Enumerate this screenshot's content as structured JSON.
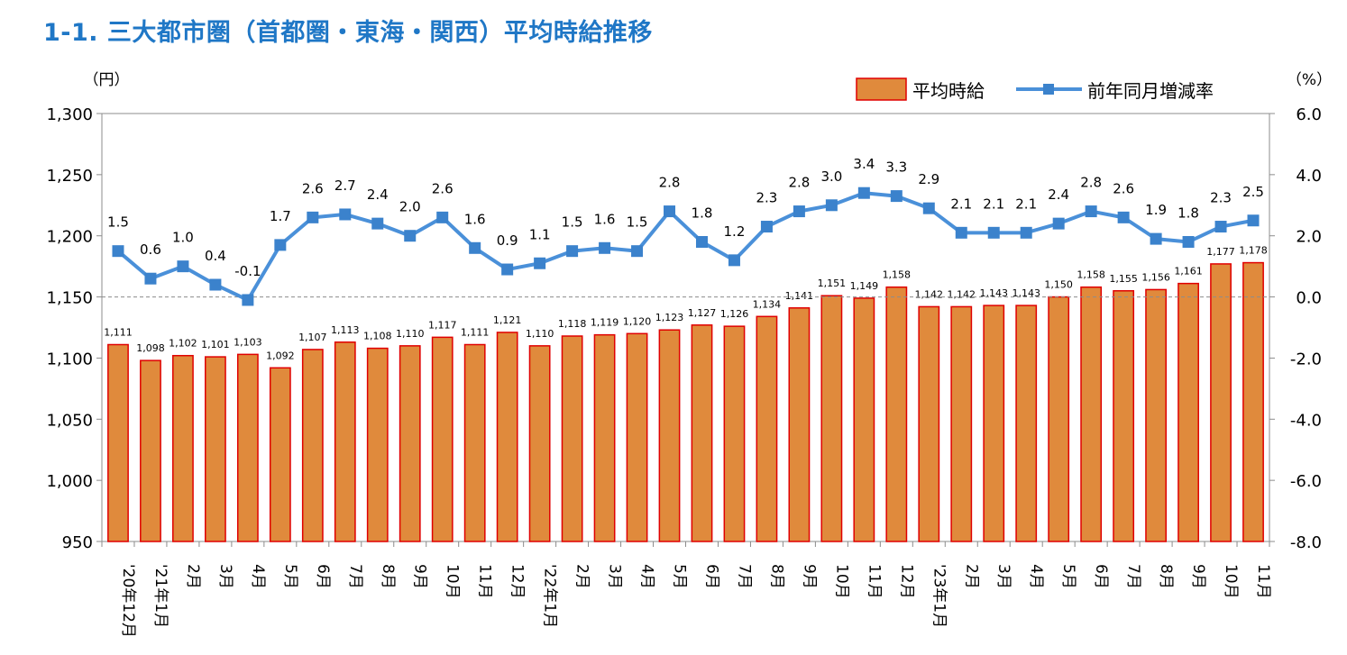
{
  "title": "1-1. 三大都市圏（首都圏・東海・関西）平均時給推移",
  "chart_data": {
    "type": "bar+line",
    "categories": [
      "'20年12月",
      "'21年1月",
      "2月",
      "3月",
      "4月",
      "5月",
      "6月",
      "7月",
      "8月",
      "9月",
      "10月",
      "11月",
      "12月",
      "'22年1月",
      "2月",
      "3月",
      "4月",
      "5月",
      "6月",
      "7月",
      "8月",
      "9月",
      "10月",
      "11月",
      "12月",
      "'23年1月",
      "2月",
      "3月",
      "4月",
      "5月",
      "6月",
      "7月",
      "8月",
      "9月",
      "10月",
      "11月"
    ],
    "series": [
      {
        "name": "平均時給",
        "type": "bar",
        "axis": "left",
        "color": "#e08a3c",
        "edge_color": "#e00000",
        "values": [
          1111,
          1098,
          1102,
          1101,
          1103,
          1092,
          1107,
          1113,
          1108,
          1110,
          1117,
          1111,
          1121,
          1110,
          1118,
          1119,
          1120,
          1123,
          1127,
          1126,
          1134,
          1141,
          1151,
          1149,
          1158,
          1142,
          1142,
          1143,
          1143,
          1150,
          1158,
          1155,
          1156,
          1161,
          1177,
          1178
        ],
        "labels": [
          "1,111",
          "1,098",
          "1,102",
          "1,101",
          "1,103",
          "1,092",
          "1,107",
          "1,113",
          "1,108",
          "1,110",
          "1,117",
          "1,111",
          "1,121",
          "1,110",
          "1,118",
          "1,119",
          "1,120",
          "1,123",
          "1,127",
          "1,126",
          "1,134",
          "1,141",
          "1,151",
          "1,149",
          "1,158",
          "1,142",
          "1,142",
          "1,143",
          "1,143",
          "1,150",
          "1,158",
          "1,155",
          "1,156",
          "1,161",
          "1,177",
          "1,178"
        ]
      },
      {
        "name": "前年同月増減率",
        "type": "line",
        "axis": "right",
        "color": "#4a90d9",
        "marker": "square",
        "values": [
          1.5,
          0.6,
          1.0,
          0.4,
          -0.1,
          1.7,
          2.6,
          2.7,
          2.4,
          2.0,
          2.6,
          1.6,
          0.9,
          1.1,
          1.5,
          1.6,
          1.5,
          2.8,
          1.8,
          1.2,
          2.3,
          2.8,
          3.0,
          3.4,
          3.3,
          2.9,
          2.1,
          2.1,
          2.1,
          2.4,
          2.8,
          2.6,
          1.9,
          1.8,
          2.3,
          2.5
        ],
        "labels": [
          "1.5",
          "0.6",
          "1.0",
          "0.4",
          "-0.1",
          "1.7",
          "2.6",
          "2.7",
          "2.4",
          "2.0",
          "2.6",
          "1.6",
          "0.9",
          "1.1",
          "1.5",
          "1.6",
          "1.5",
          "2.8",
          "1.8",
          "1.2",
          "2.3",
          "2.8",
          "3.0",
          "3.4",
          "3.3",
          "2.9",
          "2.1",
          "2.1",
          "2.1",
          "2.4",
          "2.8",
          "2.6",
          "1.9",
          "1.8",
          "2.3",
          "2.5"
        ]
      }
    ],
    "y_left": {
      "unit_label": "（円）",
      "ylim": [
        950,
        1300
      ],
      "ticks": [
        950,
        1000,
        1050,
        1100,
        1150,
        1200,
        1250,
        1300
      ],
      "tick_labels": [
        "950",
        "1,000",
        "1,050",
        "1,100",
        "1,150",
        "1,200",
        "1,250",
        "1,300"
      ]
    },
    "y_right": {
      "unit_label": "（%）",
      "ylim": [
        -8.0,
        6.0
      ],
      "ticks": [
        -8,
        -6,
        -4,
        -2,
        0,
        2,
        4,
        6
      ],
      "tick_labels": [
        "-8.0",
        "-6.0",
        "-4.0",
        "-2.0",
        "0.0",
        "2.0",
        "4.0",
        "6.0"
      ]
    },
    "zero_reference_line": "dashed",
    "grid": false,
    "legend": {
      "position": "top-right",
      "items": [
        "平均時給",
        "前年同月増減率"
      ]
    }
  }
}
